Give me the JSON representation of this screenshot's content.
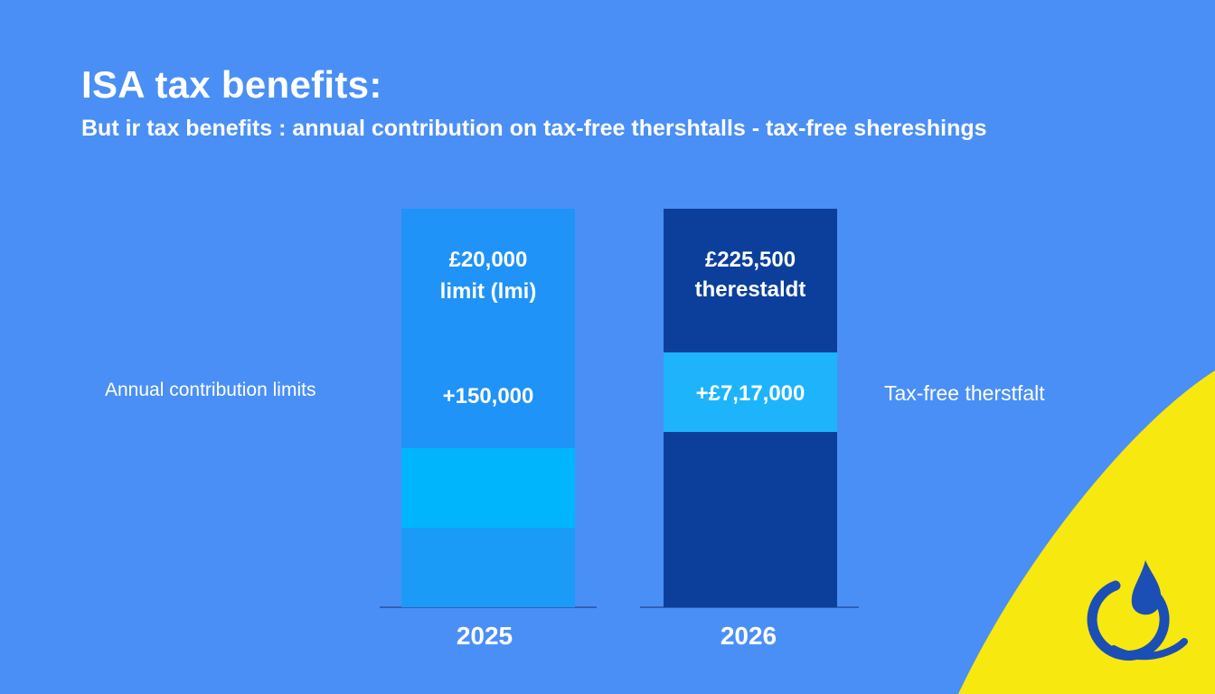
{
  "title": "ISA tax benefits:",
  "subtitle": "But ir tax benefits : annual contribution on tax-free thershtalls - tax-free shereshings",
  "left_label": "Annual contribution limits",
  "right_label": "Tax-free therstfalt",
  "colors": {
    "background": "#4a8ff5",
    "bar_2025": "#1f93f7",
    "bar_2025_highlight": "#00b5fb",
    "bar_2025_bottom": "#1a9bf8",
    "bar_2026": "#0c3f9c",
    "bar_2026_highlight": "#1db4fc",
    "accent_yellow": "#f7e80f",
    "logo_blue": "#1b4fb5"
  },
  "chart_data": {
    "type": "bar",
    "title": "ISA tax benefits:",
    "subtitle": "But ir tax benefits : annual contribution on tax-free thershtalls - tax-free shereshings",
    "categories": [
      "2025",
      "2026"
    ],
    "bars": [
      {
        "category": "2025",
        "top_label_line1": "£20,000",
        "top_label_line2": "limit (lmi)",
        "middle_label": "+150,000",
        "segments": [
          {
            "fraction": 0.2,
            "color": "#1a9bf8"
          },
          {
            "fraction": 0.2,
            "color": "#00b5fb"
          },
          {
            "fraction": 0.6,
            "color": "#1f93f7"
          }
        ]
      },
      {
        "category": "2026",
        "top_label_line1": "£225,500",
        "top_label_line2": "therestaldt",
        "middle_label": "+£7,17,000",
        "segments": [
          {
            "fraction": 0.44,
            "color": "#0c3f9c"
          },
          {
            "fraction": 0.2,
            "color": "#1db4fc"
          },
          {
            "fraction": 0.36,
            "color": "#0c3f9c"
          }
        ]
      }
    ],
    "legend": "none",
    "grid": false
  }
}
